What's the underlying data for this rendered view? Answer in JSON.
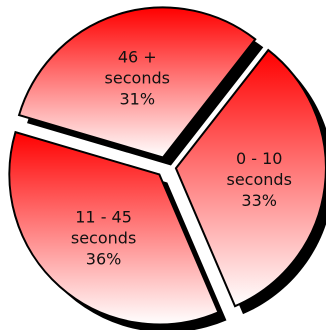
{
  "chart_data": {
    "type": "pie",
    "exploded": true,
    "shadow": true,
    "slices": [
      {
        "label_lines": [
          "0 - 10",
          "seconds",
          "33%"
        ],
        "category": "0 - 10 seconds",
        "value": 33
      },
      {
        "label_lines": [
          "11 - 45",
          "seconds",
          "36%"
        ],
        "category": "11 - 45 seconds",
        "value": 36
      },
      {
        "label_lines": [
          "46 +",
          "seconds",
          "31%"
        ],
        "category": "46 + seconds",
        "value": 31
      }
    ],
    "colors": {
      "fill_dark": "#ff0000",
      "fill_light": "#ffffff",
      "outline": "#000000",
      "shadow": "#000000"
    }
  }
}
